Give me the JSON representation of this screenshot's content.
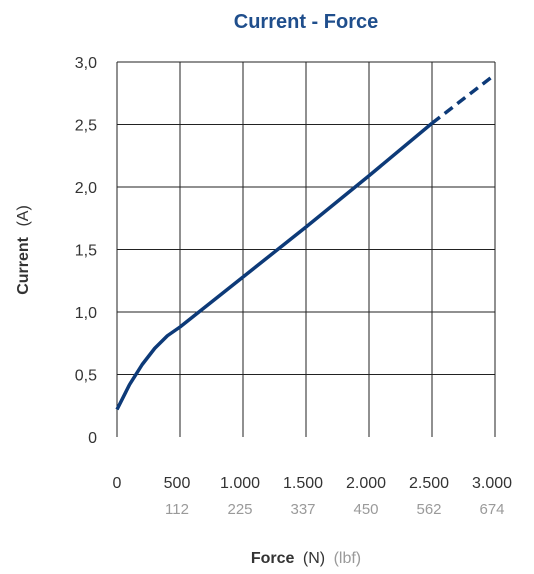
{
  "chart_data": {
    "type": "line",
    "title": "Current - Force",
    "xlabel": {
      "bold": "Force",
      "unit": "(N)",
      "unit2": "(lbf)"
    },
    "ylabel": {
      "bold": "Current",
      "unit": "(A)"
    },
    "xlim": [
      0,
      3000
    ],
    "ylim": [
      0,
      3.0
    ],
    "x_ticks": [
      0,
      500,
      1000,
      1500,
      2000,
      2500,
      3000
    ],
    "x_tick_labels": [
      "0",
      "500",
      "1.000",
      "1.500",
      "2.000",
      "2.500",
      "3.000"
    ],
    "x_tick_labels_lbf": [
      "",
      "112",
      "225",
      "337",
      "450",
      "562",
      "674"
    ],
    "y_ticks": [
      0,
      0.5,
      1.0,
      1.5,
      2.0,
      2.5,
      3.0
    ],
    "y_tick_labels": [
      "0",
      "0,5",
      "1,0",
      "1,5",
      "2,0",
      "2,5",
      "3,0"
    ],
    "grid": true,
    "line_color": "#0d3a78",
    "series": [
      {
        "style": "solid",
        "x": [
          0,
          100,
          200,
          300,
          400,
          500,
          700,
          1000,
          1500,
          2000,
          2500
        ],
        "y": [
          0.22,
          0.42,
          0.58,
          0.71,
          0.81,
          0.88,
          1.04,
          1.28,
          1.68,
          2.09,
          2.51
        ]
      },
      {
        "style": "dashed",
        "x": [
          2500,
          3000
        ],
        "y": [
          2.51,
          2.9
        ]
      }
    ]
  }
}
